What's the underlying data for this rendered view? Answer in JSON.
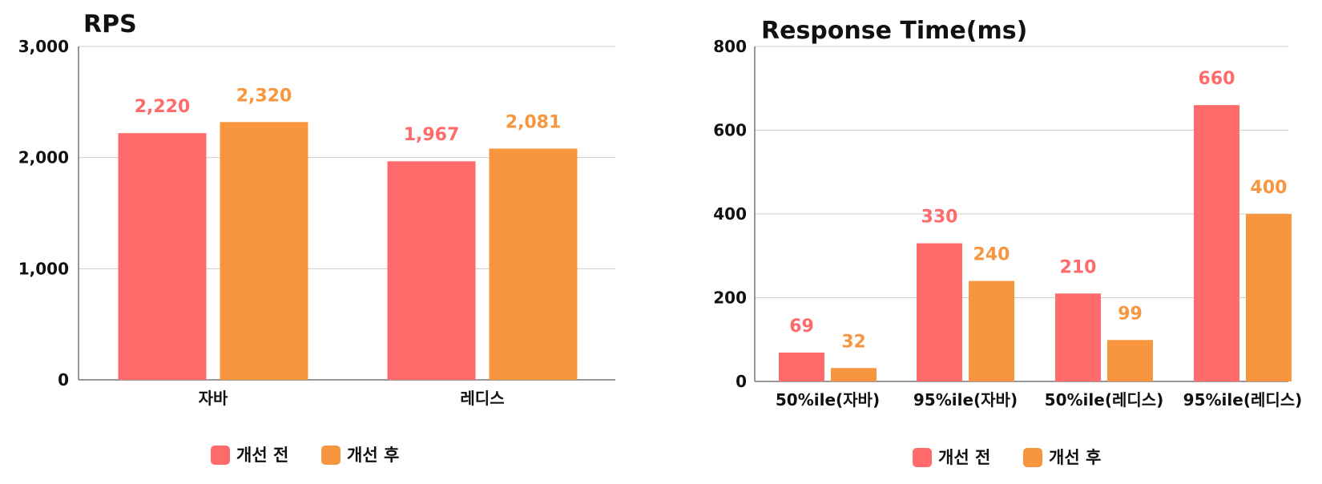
{
  "colors": {
    "before": "#ff6b6b",
    "after": "#f7963f",
    "grid": "#cfcfcf",
    "axis": "#777777"
  },
  "legend": {
    "before": "개선 전",
    "after": "개선 후"
  },
  "chart_data": [
    {
      "type": "bar",
      "title": "RPS",
      "categories": [
        "자바",
        "레디스"
      ],
      "ylim": [
        0,
        3000
      ],
      "yticks": [
        0,
        1000,
        2000,
        3000
      ],
      "ytick_labels": [
        "0",
        "1,000",
        "2,000",
        "3,000"
      ],
      "grid": true,
      "legend_position": "bottom",
      "series": [
        {
          "name": "개선 전",
          "values": [
            2220,
            1967
          ],
          "labels": [
            "2,220",
            "1,967"
          ]
        },
        {
          "name": "개선 후",
          "values": [
            2320,
            2081
          ],
          "labels": [
            "2,320",
            "2,081"
          ]
        }
      ]
    },
    {
      "type": "bar",
      "title": "Response Time(ms)",
      "categories": [
        "50%ile(자바)",
        "95%ile(자바)",
        "50%ile(레디스)",
        "95%ile(레디스)"
      ],
      "ylim": [
        0,
        800
      ],
      "yticks": [
        0,
        200,
        400,
        600,
        800
      ],
      "ytick_labels": [
        "0",
        "200",
        "400",
        "600",
        "800"
      ],
      "grid": true,
      "legend_position": "bottom",
      "series": [
        {
          "name": "개선 전",
          "values": [
            69,
            330,
            210,
            660
          ],
          "labels": [
            "69",
            "330",
            "210",
            "660"
          ]
        },
        {
          "name": "개선 후",
          "values": [
            32,
            240,
            99,
            400
          ],
          "labels": [
            "32",
            "240",
            "99",
            "400"
          ]
        }
      ]
    }
  ]
}
